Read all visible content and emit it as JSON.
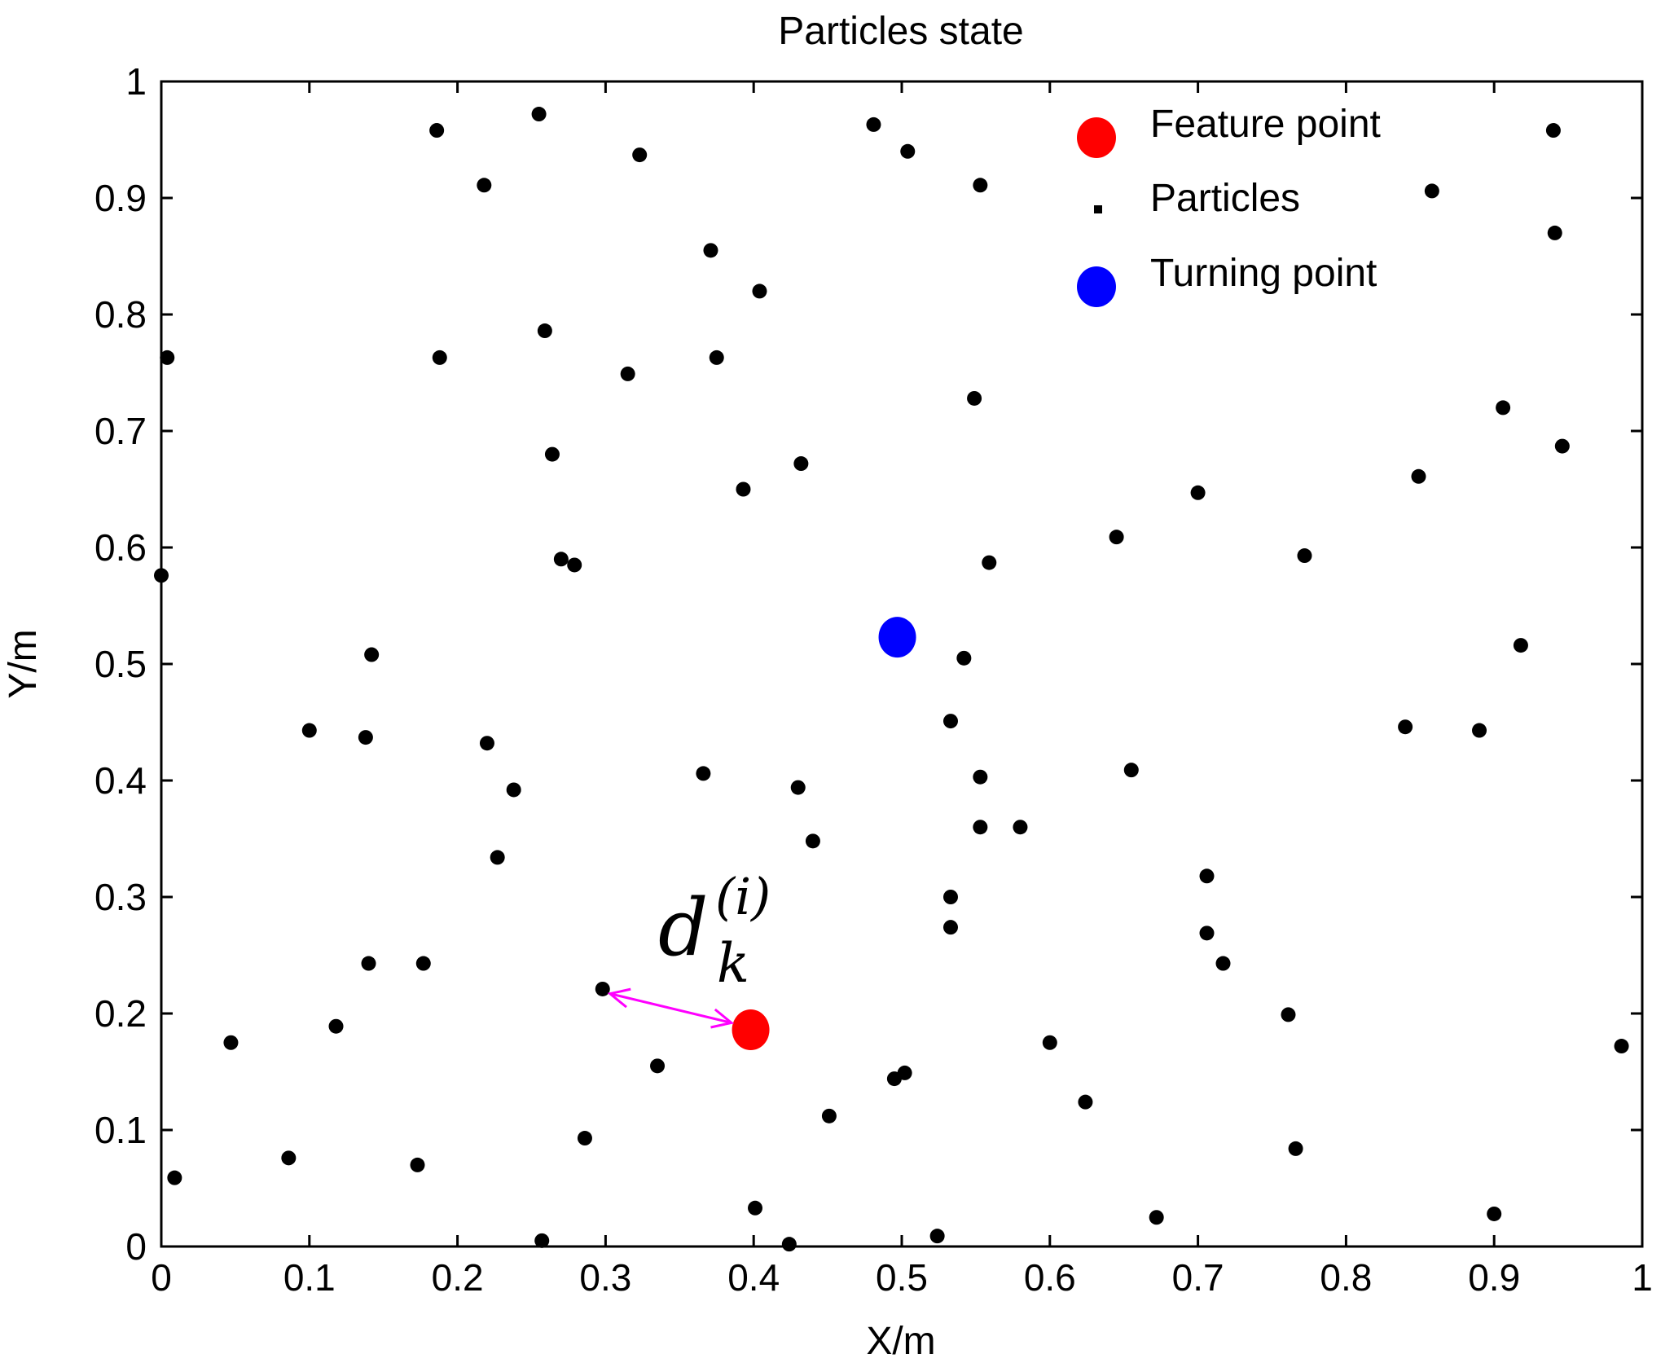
{
  "chart_data": {
    "type": "scatter",
    "title": "Particles state",
    "xlabel": "X/m",
    "ylabel": "Y/m",
    "xlim": [
      0,
      1
    ],
    "ylim": [
      0,
      1
    ],
    "xticks": [
      "0",
      "0.1",
      "0.2",
      "0.3",
      "0.4",
      "0.5",
      "0.6",
      "0.7",
      "0.8",
      "0.9",
      "1"
    ],
    "yticks": [
      "0",
      "0.1",
      "0.2",
      "0.3",
      "0.4",
      "0.5",
      "0.6",
      "0.7",
      "0.8",
      "0.9",
      "1"
    ],
    "grid": false,
    "legend_position": "top-right",
    "series": [
      {
        "name": "Feature point",
        "color": "#ff0000",
        "marker": "large-circle",
        "points": [
          [
            0.398,
            0.186
          ]
        ]
      },
      {
        "name": "Particles",
        "color": "#000000",
        "marker": "small-dot",
        "points": [
          [
            0.255,
            0.972
          ],
          [
            0.186,
            0.958
          ],
          [
            0.481,
            0.963
          ],
          [
            0.323,
            0.937
          ],
          [
            0.504,
            0.94
          ],
          [
            0.218,
            0.911
          ],
          [
            0.553,
            0.911
          ],
          [
            0.94,
            0.958
          ],
          [
            0.858,
            0.906
          ],
          [
            0.941,
            0.87
          ],
          [
            0.371,
            0.855
          ],
          [
            0.404,
            0.82
          ],
          [
            0.259,
            0.786
          ],
          [
            0.004,
            0.763
          ],
          [
            0.188,
            0.763
          ],
          [
            0.375,
            0.763
          ],
          [
            0.315,
            0.749
          ],
          [
            0.549,
            0.728
          ],
          [
            0.906,
            0.72
          ],
          [
            0.946,
            0.687
          ],
          [
            0.264,
            0.68
          ],
          [
            0.432,
            0.672
          ],
          [
            0.849,
            0.661
          ],
          [
            0.393,
            0.65
          ],
          [
            0.7,
            0.647
          ],
          [
            0.645,
            0.609
          ],
          [
            0.772,
            0.593
          ],
          [
            0.27,
            0.59
          ],
          [
            0.279,
            0.585
          ],
          [
            0.559,
            0.587
          ],
          [
            0.0,
            0.576
          ],
          [
            0.142,
            0.508
          ],
          [
            0.542,
            0.505
          ],
          [
            0.918,
            0.516
          ],
          [
            0.533,
            0.451
          ],
          [
            0.84,
            0.446
          ],
          [
            0.89,
            0.443
          ],
          [
            0.1,
            0.443
          ],
          [
            0.138,
            0.437
          ],
          [
            0.22,
            0.432
          ],
          [
            0.366,
            0.406
          ],
          [
            0.655,
            0.409
          ],
          [
            0.553,
            0.403
          ],
          [
            0.238,
            0.392
          ],
          [
            0.43,
            0.394
          ],
          [
            0.553,
            0.36
          ],
          [
            0.58,
            0.36
          ],
          [
            0.44,
            0.348
          ],
          [
            0.227,
            0.334
          ],
          [
            0.706,
            0.318
          ],
          [
            0.533,
            0.3
          ],
          [
            0.533,
            0.274
          ],
          [
            0.706,
            0.269
          ],
          [
            0.717,
            0.243
          ],
          [
            0.14,
            0.243
          ],
          [
            0.177,
            0.243
          ],
          [
            0.298,
            0.221
          ],
          [
            0.761,
            0.199
          ],
          [
            0.118,
            0.189
          ],
          [
            0.047,
            0.175
          ],
          [
            0.6,
            0.175
          ],
          [
            0.986,
            0.172
          ],
          [
            0.335,
            0.155
          ],
          [
            0.502,
            0.149
          ],
          [
            0.495,
            0.144
          ],
          [
            0.624,
            0.124
          ],
          [
            0.451,
            0.112
          ],
          [
            0.286,
            0.093
          ],
          [
            0.766,
            0.084
          ],
          [
            0.086,
            0.076
          ],
          [
            0.173,
            0.07
          ],
          [
            0.009,
            0.059
          ],
          [
            0.401,
            0.033
          ],
          [
            0.9,
            0.028
          ],
          [
            0.672,
            0.025
          ],
          [
            0.524,
            0.009
          ],
          [
            0.257,
            0.005
          ],
          [
            0.424,
            0.002
          ]
        ]
      },
      {
        "name": "Turning point",
        "color": "#0000ff",
        "marker": "large-circle",
        "points": [
          [
            0.497,
            0.523
          ]
        ]
      }
    ],
    "annotations": [
      {
        "type": "double-arrow",
        "color": "#ff00ff",
        "from": [
          0.303,
          0.217
        ],
        "to": [
          0.385,
          0.192
        ]
      },
      {
        "type": "math-label",
        "base": "d",
        "subscript": "k",
        "superscript": "(i)"
      }
    ]
  }
}
